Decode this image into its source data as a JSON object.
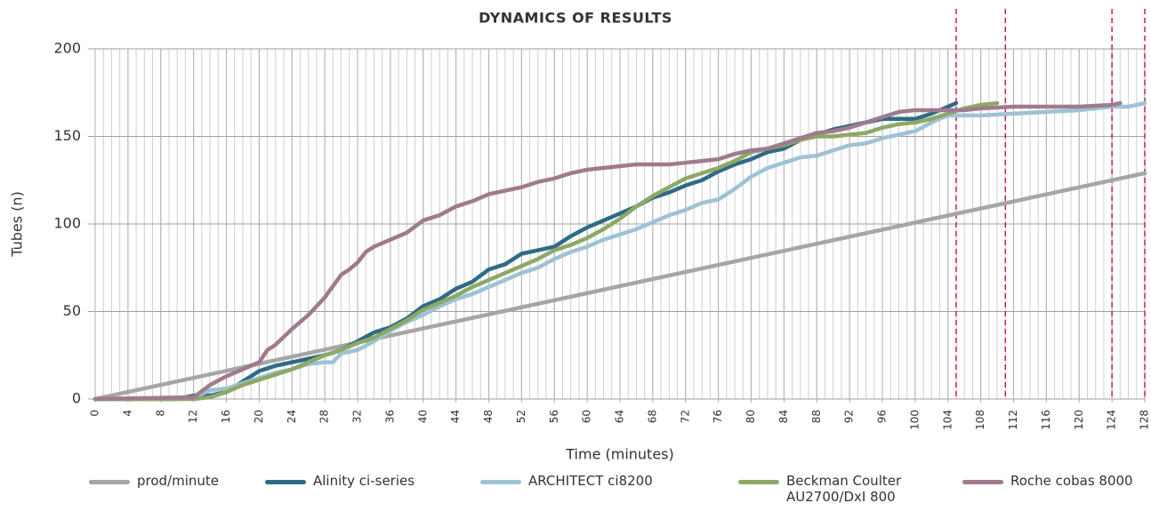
{
  "chart_data": {
    "type": "line",
    "title": "DYNAMICS OF RESULTS",
    "x_label": "Time (minutes)",
    "y_label": "Tubes (n)",
    "xlim": [
      0,
      128
    ],
    "xticks": [
      0,
      4,
      8,
      12,
      16,
      20,
      24,
      28,
      32,
      36,
      40,
      44,
      48,
      52,
      56,
      60,
      64,
      68,
      72,
      76,
      80,
      84,
      88,
      92,
      96,
      100,
      104,
      108,
      112,
      116,
      120,
      124,
      128
    ],
    "ylim": [
      0,
      200
    ],
    "yticks": [
      0,
      50,
      100,
      150,
      200
    ],
    "grid": true,
    "minor_grid_step": 1,
    "reference_lines": {
      "color": "#c8195a",
      "x": [
        105,
        111,
        124,
        128
      ]
    },
    "legend": "bottom",
    "series": [
      {
        "name": "prod/minute",
        "color": "#a6a6a6",
        "x": [
          0,
          128
        ],
        "values": [
          0,
          129
        ]
      },
      {
        "name": "Alinity ci-series",
        "color": "#2e6b86",
        "x": [
          0,
          4,
          8,
          10,
          12,
          14,
          16,
          18,
          20,
          22,
          24,
          26,
          28,
          30,
          32,
          34,
          36,
          38,
          40,
          42,
          44,
          46,
          48,
          50,
          52,
          54,
          56,
          58,
          60,
          62,
          64,
          66,
          68,
          70,
          72,
          74,
          76,
          78,
          80,
          82,
          84,
          86,
          88,
          90,
          92,
          94,
          96,
          98,
          100,
          102,
          104,
          105
        ],
        "values": [
          0,
          0,
          0,
          0,
          2,
          2,
          4,
          10,
          16,
          19,
          21,
          23,
          25,
          28,
          33,
          38,
          41,
          46,
          53,
          57,
          63,
          67,
          74,
          77,
          83,
          85,
          87,
          93,
          98,
          102,
          106,
          110,
          115,
          118,
          122,
          125,
          130,
          134,
          137,
          141,
          143,
          148,
          151,
          154,
          156,
          158,
          160,
          160,
          160,
          163,
          167,
          169
        ]
      },
      {
        "name": "ARCHITECT ci8200",
        "color": "#9dc3d3",
        "x": [
          0,
          8,
          12,
          14,
          16,
          18,
          20,
          22,
          24,
          26,
          28,
          29,
          30,
          32,
          34,
          36,
          38,
          40,
          42,
          44,
          46,
          48,
          50,
          52,
          54,
          56,
          58,
          60,
          62,
          64,
          66,
          68,
          70,
          72,
          74,
          76,
          78,
          80,
          82,
          84,
          86,
          88,
          90,
          92,
          94,
          96,
          98,
          100,
          102,
          104,
          108,
          112,
          116,
          120,
          124,
          126,
          128
        ],
        "values": [
          0,
          0,
          1,
          5,
          6,
          9,
          12,
          15,
          17,
          20,
          21,
          21,
          26,
          28,
          33,
          39,
          44,
          48,
          53,
          57,
          60,
          64,
          68,
          72,
          75,
          80,
          84,
          87,
          91,
          94,
          97,
          101,
          105,
          108,
          112,
          114,
          120,
          127,
          132,
          135,
          138,
          139,
          142,
          145,
          146,
          149,
          151,
          153,
          158,
          162,
          162,
          163,
          164,
          165,
          167,
          167,
          169
        ]
      },
      {
        "name": "Beckman Coulter AU2700/DxI 800",
        "color": "#8ea865",
        "x": [
          0,
          10,
          12,
          14,
          16,
          18,
          20,
          22,
          24,
          26,
          28,
          30,
          32,
          34,
          36,
          38,
          40,
          42,
          44,
          46,
          48,
          50,
          52,
          54,
          56,
          58,
          60,
          62,
          64,
          66,
          68,
          70,
          72,
          74,
          76,
          78,
          80,
          82,
          84,
          86,
          88,
          90,
          92,
          94,
          96,
          98,
          100,
          102,
          104,
          106,
          108,
          110
        ],
        "values": [
          0,
          0,
          0,
          1,
          4,
          8,
          11,
          14,
          17,
          21,
          25,
          28,
          32,
          35,
          40,
          45,
          51,
          55,
          59,
          64,
          68,
          72,
          76,
          80,
          85,
          88,
          92,
          97,
          103,
          110,
          116,
          121,
          126,
          129,
          132,
          136,
          141,
          143,
          145,
          148,
          150,
          150,
          151,
          152,
          155,
          157,
          158,
          160,
          163,
          166,
          168,
          169
        ]
      },
      {
        "name": "Roche cobas 8000",
        "color": "#a07a8e",
        "x": [
          0,
          12,
          14,
          16,
          18,
          20,
          21,
          22,
          24,
          26,
          28,
          30,
          31,
          32,
          33,
          34,
          36,
          38,
          40,
          42,
          44,
          46,
          48,
          50,
          52,
          54,
          56,
          58,
          60,
          62,
          64,
          66,
          68,
          70,
          72,
          74,
          76,
          78,
          80,
          82,
          84,
          86,
          88,
          90,
          92,
          94,
          96,
          98,
          100,
          104,
          106,
          108,
          112,
          116,
          120,
          124,
          125
        ],
        "values": [
          0,
          1,
          8,
          13,
          17,
          21,
          28,
          31,
          40,
          48,
          58,
          71,
          74,
          78,
          84,
          87,
          91,
          95,
          102,
          105,
          110,
          113,
          117,
          119,
          121,
          124,
          126,
          129,
          131,
          132,
          133,
          134,
          134,
          134,
          135,
          136,
          137,
          140,
          142,
          143,
          146,
          149,
          152,
          153,
          155,
          158,
          161,
          164,
          165,
          165,
          165,
          166,
          167,
          167,
          167,
          168,
          169
        ]
      }
    ]
  }
}
